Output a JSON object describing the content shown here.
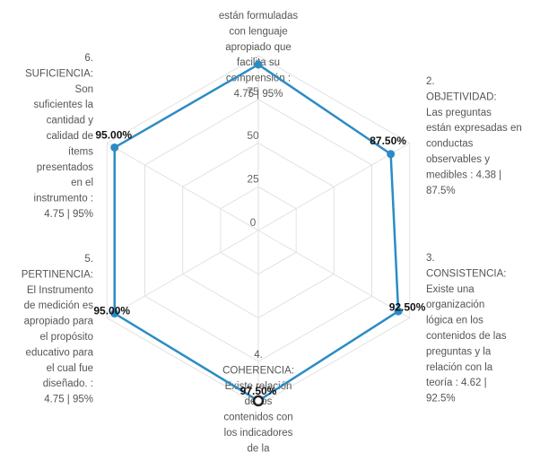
{
  "chart_data": {
    "type": "radar",
    "axes": [
      [
        "están formuladas",
        "con lenguaje",
        "apropiado que",
        "facilita su",
        "comprensión :",
        "4.75 | 95%"
      ],
      [
        "2.",
        "OBJETIVIDAD:",
        "Las preguntas",
        "están expresadas en",
        "conductas",
        "observables y",
        "medibles : 4.38 |",
        "87.5%"
      ],
      [
        "3.",
        "CONSISTENCIA:",
        "Existe una",
        "organización",
        "lógica en los",
        "contenidos de las",
        "preguntas y la",
        "relación con la",
        "teoría : 4.62 |",
        "92.5%"
      ],
      [
        "4.",
        "COHERENCIA:",
        "Existe relación",
        "de los",
        "contenidos con",
        "los indicadores",
        "de la"
      ],
      [
        "5.",
        "PERTINENCIA:",
        "El Instrumento",
        "de medición es",
        "apropiado para",
        "el propósito",
        "educativo para",
        "el cual fue",
        "diseñado. :",
        "4.75 | 95%"
      ],
      [
        "6.",
        "SUFICIENCIA:",
        "Son",
        "suficientes la",
        "cantidad y",
        "calidad de",
        "ítems",
        "presentados",
        "en el",
        "instrumento :",
        "4.75 | 95%"
      ]
    ],
    "values": [
      95,
      87.5,
      92.5,
      97.5,
      95,
      95
    ],
    "value_labels": [
      null,
      "87.50%",
      "92.50%",
      "97.50%",
      "95.00%",
      "95.00%"
    ],
    "color": "#2b8cc4",
    "rlim": [
      0,
      100
    ],
    "rticks": [
      0,
      25,
      50,
      75
    ],
    "grid": true
  }
}
